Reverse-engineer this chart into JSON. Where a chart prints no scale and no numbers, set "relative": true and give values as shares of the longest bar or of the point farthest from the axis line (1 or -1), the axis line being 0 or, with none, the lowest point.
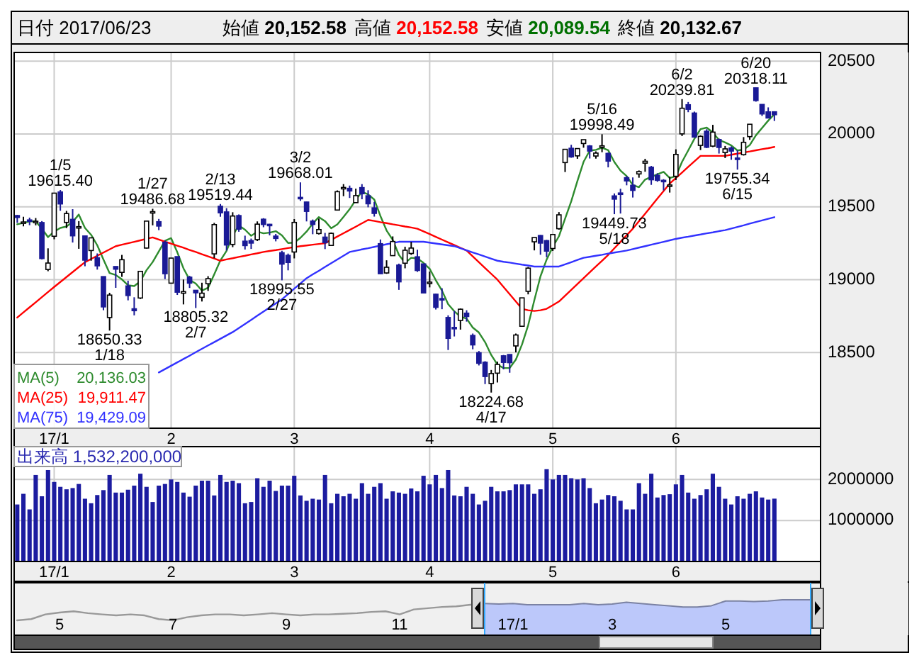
{
  "chart_data": [
    {
      "type": "candlestick",
      "title": "日付 2017/06/23",
      "categories": [
        null,
        null,
        null,
        null,
        null,
        null,
        "17/1",
        null,
        null,
        null,
        null,
        null,
        null,
        null,
        null,
        null,
        null,
        null,
        null,
        null,
        null,
        null,
        null,
        null,
        null,
        "2",
        null,
        null,
        null,
        null,
        null,
        null,
        null,
        null,
        null,
        null,
        null,
        null,
        null,
        null,
        null,
        null,
        null,
        null,
        null,
        "3",
        null,
        null,
        null,
        null,
        null,
        null,
        null,
        null,
        null,
        null,
        null,
        null,
        null,
        null,
        null,
        null,
        null,
        null,
        null,
        null,
        null,
        "4",
        null,
        null,
        null,
        null,
        null,
        null,
        null,
        null,
        null,
        null,
        null,
        null,
        null,
        null,
        null,
        null,
        null,
        null,
        null,
        "5",
        null,
        null,
        null,
        null,
        null,
        null,
        null,
        null,
        null,
        null,
        null,
        null,
        null,
        null,
        null,
        null,
        null,
        null,
        null,
        "6",
        null,
        null,
        null,
        null,
        null,
        null,
        null,
        null,
        null,
        null,
        null,
        null,
        null,
        null,
        null,
        null
      ],
      "ohlc": [
        [
          19440,
          19445,
          19390,
          19427
        ],
        [
          19394,
          19432,
          19366,
          19396
        ],
        [
          19410,
          19426,
          19374,
          19403
        ],
        [
          19398,
          19423,
          19373,
          19401
        ],
        [
          19392,
          19402,
          19139,
          19145
        ],
        [
          19070,
          19215,
          19058,
          19114
        ],
        [
          19298,
          19594,
          19277,
          19594
        ],
        [
          19602,
          19615.4,
          19473,
          19520
        ],
        [
          19393,
          19472,
          19354,
          19454
        ],
        [
          19414,
          19484,
          19255,
          19301
        ],
        [
          19358,
          19402,
          19212,
          19364
        ],
        [
          19300,
          19300,
          19092,
          19134
        ],
        [
          19200,
          19290,
          19130,
          19287
        ],
        [
          19150,
          19180,
          19069,
          19095
        ],
        [
          19021,
          19021,
          18790,
          18813
        ],
        [
          18740,
          18910,
          18650.33,
          18894
        ],
        [
          19090,
          19091,
          18944,
          19072
        ],
        [
          19050,
          19170,
          19019,
          19137
        ],
        [
          18957,
          18993,
          18858,
          18891
        ],
        [
          18800,
          18879,
          18755,
          18787
        ],
        [
          18874,
          19057,
          18867,
          19057
        ],
        [
          19217,
          19402,
          19214,
          19402
        ],
        [
          19458,
          19486.68,
          19373,
          19467
        ],
        [
          19398,
          19417,
          19340,
          19368
        ],
        [
          19257,
          19268,
          19004,
          19041
        ],
        [
          18976,
          19149,
          18976,
          19148
        ],
        [
          19158,
          19158,
          18895,
          18914
        ],
        [
          18907,
          19001,
          18830,
          18918
        ],
        [
          19017,
          19026,
          18943,
          18976
        ],
        [
          18927,
          18927,
          18805.32,
          18910
        ],
        [
          18879,
          18979,
          18850,
          18907
        ],
        [
          18972,
          19024,
          18923,
          19007
        ],
        [
          19177,
          19390,
          19147,
          19378
        ],
        [
          19504,
          19519.44,
          19432,
          19459
        ],
        [
          19465,
          19491,
          19200,
          19238
        ],
        [
          19242,
          19463,
          19223,
          19437
        ],
        [
          19440,
          19448,
          19329,
          19347
        ],
        [
          19264,
          19302,
          19207,
          19234
        ],
        [
          19268,
          19282,
          19211,
          19251
        ],
        [
          19275,
          19400,
          19265,
          19381
        ],
        [
          19415,
          19422,
          19360,
          19379
        ],
        [
          19380,
          19383,
          19304,
          19371
        ],
        [
          19299,
          19314,
          19263,
          19283
        ],
        [
          19185,
          19198,
          18995.55,
          19107
        ],
        [
          19167,
          19179,
          19064,
          19118
        ],
        [
          19190,
          19416,
          19146,
          19393
        ],
        [
          19565,
          19668.01,
          19541,
          19564
        ],
        [
          19533,
          19535,
          19400,
          19469
        ],
        [
          19402,
          19413,
          19312,
          19379
        ],
        [
          19317,
          19419,
          19310,
          19344
        ],
        [
          19292,
          19321,
          19210,
          19254
        ],
        [
          19235,
          19324,
          19232,
          19318
        ],
        [
          19478,
          19613,
          19476,
          19604
        ],
        [
          19633,
          19656,
          19573,
          19633
        ],
        [
          19627,
          19646,
          19561,
          19609
        ],
        [
          19529,
          19625,
          19528,
          19577
        ],
        [
          19632,
          19656,
          19552,
          19590
        ],
        [
          19576,
          19614,
          19497,
          19521
        ],
        [
          19493,
          19534,
          19433,
          19455
        ],
        [
          19247,
          19276,
          19040,
          19041
        ],
        [
          19046,
          19133,
          19040,
          19085
        ],
        [
          19165,
          19297,
          19164,
          19262
        ],
        [
          19100,
          19110,
          18930,
          18985
        ],
        [
          19113,
          19226,
          19078,
          19202
        ],
        [
          19180,
          19260,
          19170,
          19217
        ],
        [
          19157,
          19206,
          19053,
          19063
        ],
        [
          19108,
          19109,
          18909,
          18909
        ],
        [
          18980,
          19056,
          18947,
          18983
        ],
        [
          18900,
          18903,
          18795,
          18810
        ],
        [
          18870,
          18941,
          18797,
          18861
        ],
        [
          18740,
          18755,
          18517,
          18597
        ],
        [
          18672,
          18785,
          18610,
          18664
        ],
        [
          18720,
          18802,
          18657,
          18797
        ],
        [
          18770,
          18790,
          18712,
          18747
        ],
        [
          18617,
          18630,
          18522,
          18552
        ],
        [
          18498,
          18510,
          18411,
          18426
        ],
        [
          18433,
          18440,
          18283,
          18335
        ],
        [
          18287,
          18380,
          18224.68,
          18355
        ],
        [
          18358,
          18437,
          18294,
          18418
        ],
        [
          18477,
          18483,
          18384,
          18432
        ],
        [
          18486,
          18486,
          18361,
          18430
        ],
        [
          18545,
          18630,
          18501,
          18620
        ],
        [
          18680,
          18875,
          18680,
          18875
        ],
        [
          18920,
          19087,
          18899,
          19079
        ],
        [
          19260,
          19289,
          19201,
          19289
        ],
        [
          19303,
          19306,
          19171,
          19251
        ],
        [
          19268,
          19273,
          19154,
          19196
        ],
        [
          19214,
          19310,
          19197,
          19310
        ],
        [
          19350,
          19464,
          19343,
          19445
        ],
        [
          19804,
          19895,
          19739,
          19895
        ],
        [
          19902,
          19926,
          19837,
          19843
        ],
        [
          19850,
          19901,
          19830,
          19900
        ],
        [
          19935,
          19961,
          19906,
          19961
        ],
        [
          19918,
          19924,
          19832,
          19883
        ],
        [
          19849,
          19881,
          19831,
          19869
        ],
        [
          19909,
          19998.49,
          19875,
          19919
        ],
        [
          19867,
          19872,
          19771,
          19814
        ],
        [
          19575,
          19592,
          19449.73,
          19553
        ],
        [
          19595,
          19624,
          19454,
          19590
        ],
        [
          19700,
          19712,
          19648,
          19678
        ],
        [
          19648,
          19702,
          19564,
          19613
        ],
        [
          19726,
          19750,
          19700,
          19742
        ],
        [
          19800,
          19830,
          19741,
          19813
        ],
        [
          19772,
          19781,
          19651,
          19686
        ],
        [
          19716,
          19731,
          19672,
          19682
        ],
        [
          19682,
          19690,
          19613,
          19677
        ],
        [
          19641,
          19706,
          19598,
          19650
        ],
        [
          19710,
          19895,
          19684,
          19860
        ],
        [
          20001,
          20239.81,
          19986,
          20177
        ],
        [
          20201,
          20220,
          20150,
          20170
        ],
        [
          20144,
          20154,
          19978,
          19979
        ],
        [
          19922,
          19991,
          19890,
          19984
        ],
        [
          20019,
          20033,
          19903,
          19909
        ],
        [
          19917,
          20063,
          19910,
          20013
        ],
        [
          19962,
          19969,
          19866,
          19908
        ],
        [
          19873,
          19918,
          19835,
          19898
        ],
        [
          19904,
          19915,
          19823,
          19883
        ],
        [
          19835,
          19888,
          19755.34,
          19831
        ],
        [
          19858,
          19979,
          19852,
          19943
        ],
        [
          19982,
          20067,
          19960,
          20067
        ],
        [
          20317,
          20318.11,
          20222,
          20230
        ],
        [
          20203,
          20204,
          20124,
          20138
        ],
        [
          20152,
          20183,
          20110,
          20110
        ],
        [
          20152.58,
          20152.58,
          20089.54,
          20132.67
        ]
      ],
      "series": [
        {
          "type": "line",
          "name": "MA(5)  20,136.03",
          "color": "#2e8b2e",
          "values": [
            19380,
            19390,
            19400,
            19400,
            19350,
            19292,
            19330,
            19355,
            19365,
            19397,
            19447,
            19355,
            19308,
            19236,
            19139,
            19045,
            19032,
            19002,
            18961,
            18956,
            18989,
            19065,
            19121,
            19194,
            19267,
            19285,
            19188,
            19078,
            18999,
            18973,
            18925,
            18944,
            19036,
            19132,
            19198,
            19304,
            19372,
            19343,
            19301,
            19330,
            19318,
            19323,
            19333,
            19304,
            19252,
            19254,
            19287,
            19330,
            19385,
            19430,
            19402,
            19353,
            19380,
            19431,
            19484,
            19548,
            19603,
            19586,
            19550,
            19437,
            19338,
            19273,
            19170,
            19115,
            19150,
            19146,
            19115,
            19075,
            18996,
            18925,
            18832,
            18783,
            18746,
            18733,
            18671,
            18637,
            18571,
            18483,
            18417,
            18393,
            18394,
            18451,
            18555,
            18687,
            18859,
            19023,
            19138,
            19225,
            19298,
            19419,
            19538,
            19677,
            19809,
            19886,
            19891,
            19906,
            19889,
            19808,
            19749,
            19711,
            19650,
            19635,
            19687,
            19706,
            19723,
            19740,
            19698,
            19711,
            19809,
            19887,
            19967,
            20034,
            20044,
            20011,
            19959,
            19942,
            19922,
            19887,
            19893,
            19924,
            19991,
            20042,
            20092,
            20136.03
          ]
        },
        {
          "type": "line",
          "name": "MA(25)  19,911.47",
          "color": "#ff0000",
          "values": [
            18740,
            18775,
            18810,
            18845,
            18880,
            18915,
            18950,
            18984,
            19018,
            19052,
            19086,
            19120,
            19142,
            19164,
            19186,
            19208,
            19230,
            19240,
            19250,
            19260,
            19270,
            19280,
            19290,
            19276,
            19261,
            19247,
            19233,
            19219,
            19204,
            19190,
            19175,
            19160,
            19145,
            19130,
            19139,
            19147,
            19156,
            19164,
            19173,
            19181,
            19190,
            19197,
            19203,
            19210,
            19217,
            19223,
            19230,
            19235,
            19240,
            19245,
            19250,
            19273,
            19296,
            19319,
            19341,
            19364,
            19387,
            19410,
            19403,
            19395,
            19388,
            19380,
            19373,
            19365,
            19358,
            19350,
            19331,
            19313,
            19294,
            19275,
            19256,
            19238,
            19219,
            19200,
            19160,
            19120,
            19080,
            19040,
            19000,
            18950,
            18900,
            18850,
            18800,
            18790,
            18785,
            18790,
            18800,
            18825,
            18850,
            18890,
            18930,
            18970,
            19010,
            19050,
            19090,
            19130,
            19170,
            19215,
            19260,
            19305,
            19350,
            19402,
            19453,
            19505,
            19557,
            19608,
            19660,
            19698,
            19736,
            19774,
            19812,
            19850,
            19850,
            19850,
            19850,
            19850,
            19858,
            19865,
            19873,
            19880,
            19888,
            19896,
            19903,
            19911.47
          ]
        },
        {
          "type": "line",
          "name": "MA(75)  19,429.09",
          "color": "#3232ff",
          "values": [
            null,
            null,
            null,
            null,
            null,
            null,
            null,
            null,
            null,
            null,
            null,
            null,
            null,
            null,
            null,
            null,
            null,
            null,
            null,
            null,
            null,
            null,
            null,
            18363,
            18386,
            18409,
            18432,
            18455,
            18478,
            18502,
            18525,
            18548,
            18571,
            18594,
            18617,
            18640,
            18668,
            18696,
            18724,
            18753,
            18781,
            18809,
            18837,
            18865,
            18901,
            18938,
            18974,
            19010,
            19036,
            19061,
            19087,
            19113,
            19139,
            19164,
            19190,
            19199,
            19208,
            19216,
            19225,
            19234,
            19243,
            19251,
            19260,
            19260,
            19260,
            19260,
            19260,
            19254,
            19248,
            19242,
            19236,
            19230,
            19216,
            19201,
            19187,
            19173,
            19159,
            19144,
            19130,
            19123,
            19117,
            19110,
            19103,
            19097,
            19090,
            19090,
            19090,
            19090,
            19090,
            19105,
            19120,
            19135,
            19150,
            19157,
            19164,
            19171,
            19179,
            19186,
            19193,
            19200,
            19210,
            19220,
            19230,
            19240,
            19250,
            19260,
            19270,
            19280,
            19288,
            19295,
            19303,
            19310,
            19318,
            19325,
            19333,
            19340,
            19351,
            19362,
            19373,
            19385,
            19396,
            19407,
            19418,
            19429.09
          ]
        }
      ],
      "ylim": [
        17980,
        20560
      ],
      "yticks": [
        18500,
        19000,
        19500,
        20000,
        20500
      ],
      "grid": true,
      "legend": "bottom left",
      "annotations": [
        "始値 20,152.58",
        "高値 20,152.58",
        "安値 20,089.54",
        "終値 20,132.67",
        {
          "text": "1/5\n19615.40",
          "y": 19615.4
        },
        {
          "text": "18650.33\n1/18",
          "y": 18650.33
        },
        {
          "text": "1/27\n19486.68",
          "y": 19486.68
        },
        {
          "text": "18805.32\n2/7",
          "y": 18805.32
        },
        {
          "text": "2/13\n19519.44",
          "y": 19519.44
        },
        {
          "text": "18995.55\n2/27",
          "y": 18995.55
        },
        {
          "text": "3/2\n19668.01",
          "y": 19668.01
        },
        {
          "text": "18224.68\n4/17",
          "y": 18224.68
        },
        {
          "text": "5/16\n19998.49",
          "y": 19998.49
        },
        {
          "text": "19449.73\n5/18",
          "y": 19449.73
        },
        {
          "text": "6/2\n20239.81",
          "y": 20239.81
        },
        {
          "text": "19755.34\n6/15",
          "y": 19755.34
        },
        {
          "text": "6/20\n20318.11",
          "y": 20318.11
        }
      ]
    },
    {
      "type": "bar",
      "categories": [
        null,
        null,
        null,
        null,
        null,
        null,
        "17/1",
        null,
        null,
        null,
        null,
        null,
        null,
        null,
        null,
        null,
        null,
        null,
        null,
        null,
        null,
        null,
        null,
        null,
        null,
        "2",
        null,
        null,
        null,
        null,
        null,
        null,
        null,
        null,
        null,
        null,
        null,
        null,
        null,
        null,
        null,
        null,
        null,
        null,
        null,
        "3",
        null,
        null,
        null,
        null,
        null,
        null,
        null,
        null,
        null,
        null,
        null,
        null,
        null,
        null,
        null,
        null,
        null,
        null,
        null,
        null,
        null,
        "4",
        null,
        null,
        null,
        null,
        null,
        null,
        null,
        null,
        null,
        null,
        null,
        null,
        null,
        null,
        null,
        null,
        null,
        null,
        null,
        "5",
        null,
        null,
        null,
        null,
        null,
        null,
        null,
        null,
        null,
        null,
        null,
        null,
        null,
        null,
        null,
        null,
        null,
        null,
        null,
        "6",
        null,
        null,
        null,
        null,
        null,
        null,
        null,
        null,
        null,
        null,
        null,
        null,
        null,
        null,
        null,
        null
      ],
      "values": [
        1390000,
        1650000,
        1270000,
        2110000,
        1590000,
        2230000,
        1940000,
        1820000,
        1760000,
        1790000,
        1890000,
        1530000,
        1420000,
        1620000,
        1740000,
        2110000,
        1680000,
        1680000,
        1750000,
        1850000,
        2140000,
        1820000,
        1450000,
        1850000,
        1890000,
        2000000,
        1940000,
        1680000,
        1580000,
        1850000,
        1970000,
        1970000,
        1610000,
        2110000,
        1940000,
        1970000,
        1910000,
        1420000,
        1450000,
        2030000,
        1820000,
        1970000,
        1720000,
        1850000,
        1850000,
        2090000,
        1610000,
        1480000,
        1530000,
        1510000,
        2110000,
        1420000,
        1650000,
        1590000,
        1650000,
        1530000,
        1910000,
        1650000,
        1820000,
        1910000,
        1530000,
        1710000,
        1680000,
        1650000,
        1780000,
        1710000,
        2090000,
        1880000,
        2110000,
        1790000,
        2230000,
        1610000,
        1590000,
        1820000,
        1650000,
        1390000,
        1480000,
        1820000,
        1710000,
        1710000,
        1740000,
        1880000,
        1880000,
        1880000,
        1650000,
        1760000,
        2250000,
        2000000,
        2110000,
        2110000,
        2030000,
        2000000,
        2030000,
        1790000,
        1420000,
        1510000,
        1620000,
        1590000,
        1480000,
        1270000,
        1270000,
        1910000,
        1650000,
        2140000,
        1560000,
        1620000,
        1640000,
        1880000,
        2110000,
        1680000,
        1530000,
        1620000,
        1760000,
        2140000,
        1820000,
        1530000,
        1390000,
        1590000,
        1530000,
        1650000,
        1710000,
        1560000,
        1510000,
        1532200
      ],
      "color": "#1c1ca0",
      "ylim": [
        0,
        2800000
      ],
      "yticks": [
        1000000,
        2000000
      ],
      "grid": true,
      "annotations": [
        "出来高  1,532,200,000"
      ]
    },
    {
      "type": "area",
      "relative": true,
      "tick_labels": "x",
      "categories": [
        null,
        null,
        null,
        "5",
        null,
        null,
        null,
        null,
        null,
        null,
        null,
        "7",
        null,
        null,
        null,
        null,
        null,
        null,
        null,
        "9",
        null,
        null,
        null,
        null,
        null,
        null,
        null,
        "11",
        null,
        null,
        null,
        null,
        null,
        null,
        null,
        "17/1",
        null,
        null,
        null,
        null,
        null,
        null,
        "3",
        null,
        null,
        null,
        null,
        null,
        null,
        null,
        "5",
        null,
        null,
        null,
        null,
        null,
        null
      ],
      "series": [
        {
          "type": "line",
          "color": "#999999",
          "values": [
            0,
            0.06,
            0.29,
            0.38,
            0.44,
            0.35,
            0.29,
            0.24,
            0.29,
            0.24,
            0.06,
            0,
            0.15,
            0.24,
            0.29,
            0.29,
            0.24,
            0.29,
            0.35,
            0.29,
            0.24,
            0.29,
            0.29,
            0.32,
            0.35,
            0.41,
            0.44,
            0.29,
            0.53,
            0.59,
            0.65,
            0.68,
            0.76,
            0.82,
            null,
            null,
            null,
            null,
            null,
            null,
            null,
            null,
            null,
            null,
            null,
            null,
            null,
            null,
            null,
            null,
            null,
            null,
            null,
            null,
            null,
            null,
            null
          ]
        },
        {
          "type": "area",
          "color": "#bcc8fa",
          "values": [
            null,
            null,
            null,
            null,
            null,
            null,
            null,
            null,
            null,
            null,
            null,
            null,
            null,
            null,
            null,
            null,
            null,
            null,
            null,
            null,
            null,
            null,
            null,
            null,
            null,
            null,
            null,
            null,
            null,
            null,
            null,
            null,
            null,
            0.82,
            0.79,
            0.82,
            0.76,
            0.76,
            0.76,
            0.76,
            0.82,
            0.76,
            0.79,
            0.88,
            0.82,
            0.76,
            0.71,
            0.65,
            0.65,
            0.71,
            0.94,
            0.94,
            0.91,
            0.94,
            1,
            1,
            1
          ]
        }
      ]
    }
  ]
}
